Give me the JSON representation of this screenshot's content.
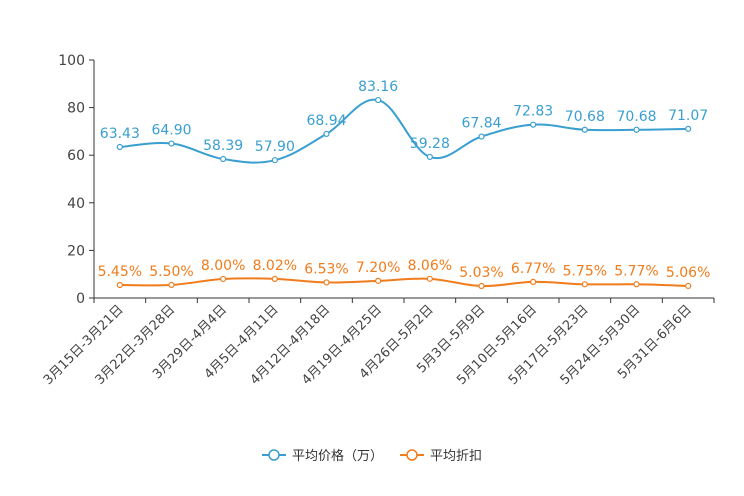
{
  "chart_data": {
    "type": "line",
    "title": "",
    "xlabel": "",
    "ylabel": "",
    "ylim": [
      0,
      100
    ],
    "yticks": [
      0,
      20,
      40,
      60,
      80,
      100
    ],
    "grid": false,
    "legend_position": "bottom-center",
    "categories": [
      "3月15日-3月21日",
      "3月22日-3月28日",
      "3月29日-4月4日",
      "4月5日-4月11日",
      "4月12日-4月18日",
      "4月19日-4月25日",
      "4月26日-5月2日",
      "5月3日-5月9日",
      "5月10日-5月16日",
      "5月17日-5月23日",
      "5月24日-5月30日",
      "5月31日-6月6日"
    ],
    "series": [
      {
        "name": "平均价格（万）",
        "color": "#3a9fd0",
        "values": [
          63.43,
          64.9,
          58.39,
          57.9,
          68.94,
          83.16,
          59.28,
          67.84,
          72.83,
          70.68,
          70.68,
          71.07
        ],
        "labels": [
          "63.43",
          "64.90",
          "58.39",
          "57.90",
          "68.94",
          "83.16",
          "59.28",
          "67.84",
          "72.83",
          "70.68",
          "70.68",
          "71.07"
        ]
      },
      {
        "name": "平均折扣",
        "color": "#f07c1c",
        "values": [
          5.45,
          5.5,
          8.0,
          8.02,
          6.53,
          7.2,
          8.06,
          5.03,
          6.77,
          5.75,
          5.77,
          5.06
        ],
        "labels": [
          "5.45%",
          "5.50%",
          "8.00%",
          "8.02%",
          "6.53%",
          "7.20%",
          "8.06%",
          "5.03%",
          "6.77%",
          "5.75%",
          "5.77%",
          "5.06%"
        ]
      }
    ]
  }
}
